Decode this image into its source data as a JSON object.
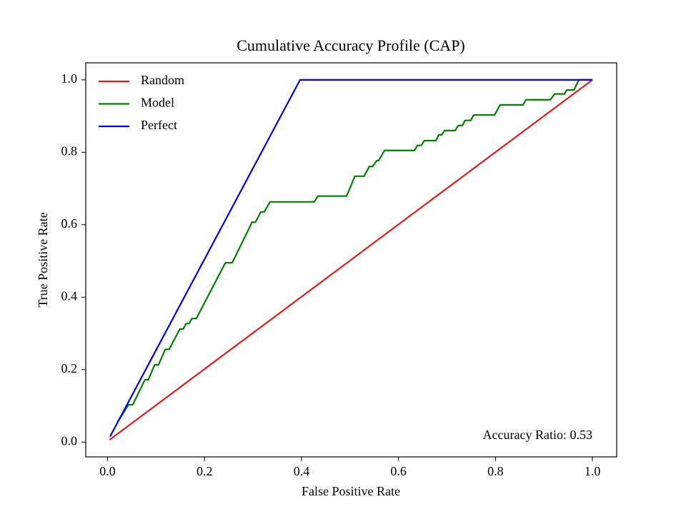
{
  "chart_data": {
    "type": "line",
    "title": "Cumulative Accuracy Profile (CAP)",
    "xlabel": "False Positive Rate",
    "ylabel": "True Positive Rate",
    "annotation": "Accuracy Ratio: 0.53",
    "legend": "upper left",
    "grid": false,
    "xlim": [
      -0.045,
      1.05
    ],
    "ylim": [
      -0.041,
      1.047
    ],
    "xticks": [
      {
        "value": 0,
        "label": "0.0"
      },
      {
        "value": 0.2,
        "label": "0.2"
      },
      {
        "value": 0.4,
        "label": "0.4"
      },
      {
        "value": 0.6,
        "label": "0.6"
      },
      {
        "value": 0.8,
        "label": "0.8"
      },
      {
        "value": 1,
        "label": "1.0"
      }
    ],
    "yticks": [
      {
        "value": 0,
        "label": "0.0"
      },
      {
        "value": 0.2,
        "label": "0.2"
      },
      {
        "value": 0.4,
        "label": "0.4"
      },
      {
        "value": 0.6,
        "label": "0.6"
      },
      {
        "value": 0.8,
        "label": "0.8"
      },
      {
        "value": 1,
        "label": "1.0"
      }
    ],
    "series": [
      {
        "name": "Random",
        "color": "#e41a1c",
        "x": [
          0.004,
          1.0
        ],
        "values": [
          0.006,
          1.0
        ]
      },
      {
        "name": "Model",
        "color": "#008000",
        "x": [
          0.021,
          0.031,
          0.043,
          0.052,
          0.077,
          0.084,
          0.097,
          0.105,
          0.119,
          0.127,
          0.149,
          0.156,
          0.162,
          0.168,
          0.174,
          0.183,
          0.243,
          0.257,
          0.298,
          0.305,
          0.316,
          0.323,
          0.335,
          0.426,
          0.434,
          0.493,
          0.51,
          0.529,
          0.54,
          0.547,
          0.555,
          0.559,
          0.571,
          0.633,
          0.639,
          0.647,
          0.653,
          0.677,
          0.683,
          0.689,
          0.695,
          0.717,
          0.723,
          0.732,
          0.737,
          0.749,
          0.755,
          0.798,
          0.81,
          0.857,
          0.863,
          0.913,
          0.922,
          0.942,
          0.947,
          0.962,
          0.972,
          1.0
        ],
        "values": [
          0.057,
          0.077,
          0.103,
          0.103,
          0.172,
          0.172,
          0.213,
          0.213,
          0.256,
          0.256,
          0.312,
          0.312,
          0.327,
          0.327,
          0.341,
          0.341,
          0.495,
          0.495,
          0.607,
          0.607,
          0.635,
          0.635,
          0.663,
          0.663,
          0.679,
          0.679,
          0.734,
          0.734,
          0.761,
          0.761,
          0.777,
          0.777,
          0.805,
          0.805,
          0.819,
          0.819,
          0.832,
          0.832,
          0.848,
          0.848,
          0.86,
          0.86,
          0.874,
          0.874,
          0.888,
          0.888,
          0.903,
          0.903,
          0.931,
          0.931,
          0.945,
          0.945,
          0.961,
          0.961,
          0.972,
          0.972,
          1.0,
          1.0
        ]
      },
      {
        "name": "Perfect",
        "color": "#0000e0",
        "x": [
          0.005,
          0.397,
          1.0
        ],
        "values": [
          0.015,
          1.0,
          1.0
        ]
      }
    ]
  }
}
